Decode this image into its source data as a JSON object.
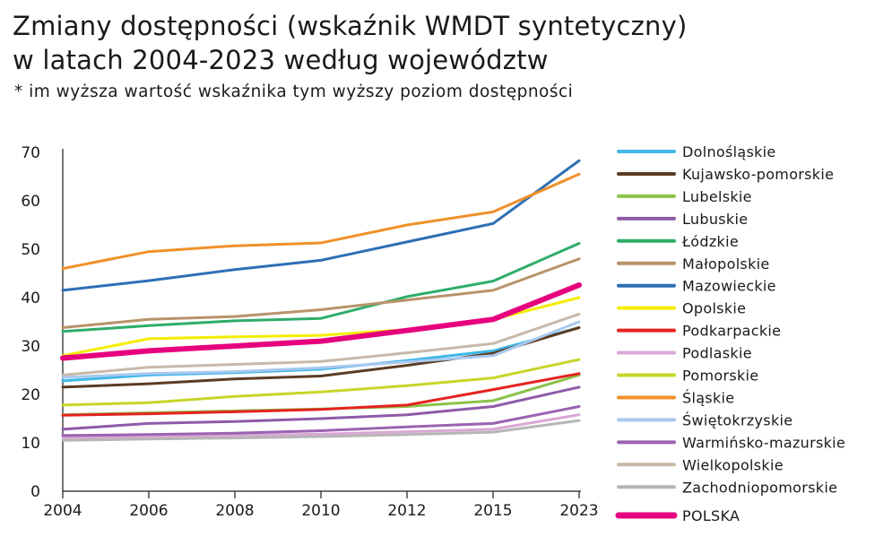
{
  "title_line1": "Zmiany dostępności (wskaźnik WMDT syntetyczny)",
  "title_line2": "w latach 2004-2023 według województw",
  "subtitle": "* im wyższa wartość wskaźnika tym wyższy poziom dostępności",
  "chart_data": {
    "type": "line",
    "x": [
      "2004",
      "2006",
      "2008",
      "2010",
      "2012",
      "2015",
      "2023"
    ],
    "ylim": [
      0,
      70
    ],
    "yticks": [
      0,
      10,
      20,
      30,
      40,
      50,
      60,
      70
    ],
    "grid": false,
    "legend_position": "right",
    "series": [
      {
        "name": "Dolnośląskie",
        "color": "#3db8e8",
        "values": [
          22.8,
          24.0,
          24.5,
          25.2,
          27.0,
          29.0,
          33.8
        ]
      },
      {
        "name": "Kujawsko-pomorskie",
        "color": "#5c3c24",
        "values": [
          21.5,
          22.2,
          23.2,
          23.8,
          26.0,
          28.5,
          33.8
        ]
      },
      {
        "name": "Lubelskie",
        "color": "#8bc34a",
        "values": [
          15.8,
          16.2,
          16.6,
          17.0,
          17.5,
          18.7,
          24.0
        ]
      },
      {
        "name": "Lubuskie",
        "color": "#8e5ba8",
        "values": [
          12.8,
          14.0,
          14.4,
          15.0,
          15.8,
          17.5,
          21.5
        ]
      },
      {
        "name": "Łódzkie",
        "color": "#2ead6a",
        "values": [
          33.0,
          34.2,
          35.2,
          35.7,
          40.2,
          43.4,
          51.2
        ]
      },
      {
        "name": "Małopolskie",
        "color": "#b8936a",
        "values": [
          33.8,
          35.5,
          36.1,
          37.5,
          39.5,
          41.5,
          48.0
        ]
      },
      {
        "name": "Mazowieckie",
        "color": "#2e6fb5",
        "values": [
          41.5,
          43.5,
          45.8,
          47.7,
          51.5,
          55.3,
          68.3
        ]
      },
      {
        "name": "Opolskie",
        "color": "#f5ec00",
        "values": [
          28.0,
          31.5,
          31.9,
          32.2,
          33.4,
          35.5,
          40.0
        ]
      },
      {
        "name": "Podkarpackie",
        "color": "#e42320",
        "values": [
          15.7,
          16.0,
          16.4,
          16.9,
          17.8,
          21.0,
          24.3
        ]
      },
      {
        "name": "Podlaskie",
        "color": "#d9a8d4",
        "values": [
          11.0,
          11.2,
          11.5,
          11.8,
          12.3,
          12.8,
          15.8
        ]
      },
      {
        "name": "Pomorskie",
        "color": "#c8d52a",
        "values": [
          17.8,
          18.3,
          19.6,
          20.5,
          21.8,
          23.4,
          27.2
        ]
      },
      {
        "name": "Śląskie",
        "color": "#f0902a",
        "values": [
          46.0,
          49.5,
          50.7,
          51.3,
          55.0,
          57.7,
          65.5
        ]
      },
      {
        "name": "Świętokrzyskie",
        "color": "#a9c8ee",
        "values": [
          23.5,
          24.3,
          24.7,
          25.5,
          26.7,
          28.0,
          35.0
        ]
      },
      {
        "name": "Warmińsko-mazurskie",
        "color": "#9a63b0",
        "values": [
          11.5,
          11.7,
          12.0,
          12.5,
          13.3,
          14.0,
          17.5
        ]
      },
      {
        "name": "Wielkopolskie",
        "color": "#c8b9a9",
        "values": [
          24.0,
          25.6,
          26.2,
          26.8,
          28.6,
          30.5,
          36.6
        ]
      },
      {
        "name": "Zachodniopomorskie",
        "color": "#b6b6b6",
        "values": [
          10.5,
          10.8,
          11.0,
          11.3,
          11.7,
          12.2,
          14.6
        ]
      },
      {
        "name": "POLSKA",
        "color": "#e6007e",
        "values": [
          27.5,
          29.0,
          30.0,
          31.0,
          33.2,
          35.5,
          42.6
        ]
      }
    ]
  }
}
